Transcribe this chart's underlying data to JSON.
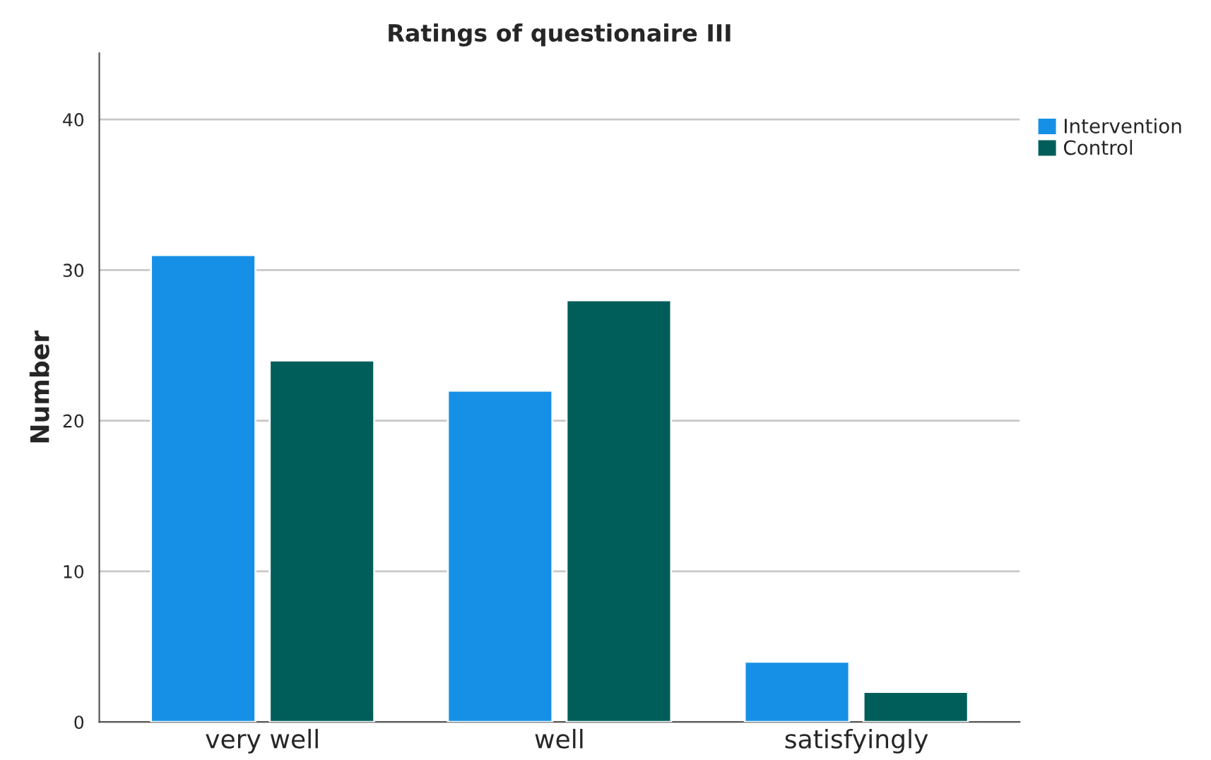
{
  "chart_data": {
    "type": "bar",
    "title": "Ratings of questionaire III",
    "ylabel": "Number",
    "categories": [
      "very well",
      "well",
      "satisfyingly"
    ],
    "series": [
      {
        "name": "Intervention",
        "color": "#1690e6",
        "values": [
          31,
          22,
          4
        ]
      },
      {
        "name": "Control",
        "color": "#005e5a",
        "values": [
          24,
          28,
          2
        ]
      }
    ],
    "ylim": [
      0,
      44.4
    ],
    "yticks": [
      0,
      10,
      20,
      30,
      40
    ],
    "grid": "y",
    "legend": "top right"
  }
}
